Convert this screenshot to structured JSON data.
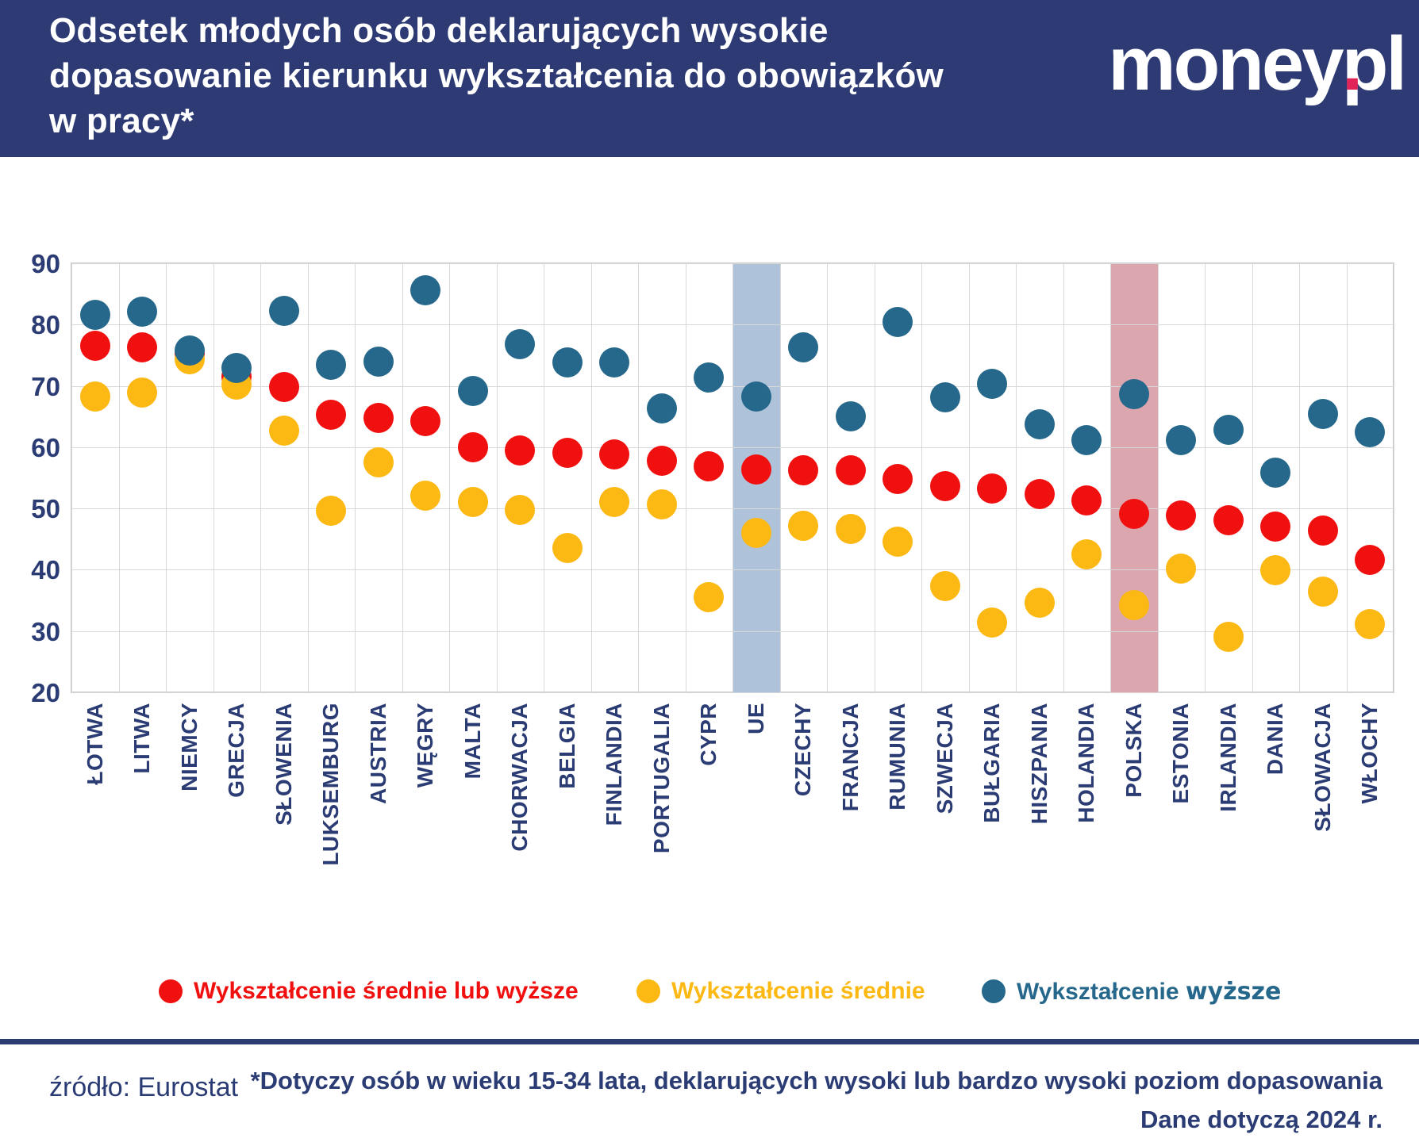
{
  "header": {
    "title_line1": "Odsetek młodych osób deklarujących wysokie",
    "title_line2": "dopasowanie kierunku wykształcenia do obowiązków",
    "title_line3": "w pracy*",
    "logo_part1": "money",
    "logo_dot": ".",
    "logo_part2": "pl"
  },
  "colors": {
    "header_bg": "#2d3a74",
    "text_navy": "#2b3c74",
    "red": "#f01010",
    "yellow": "#fcb813",
    "blue": "#26688b",
    "logo_dot_pink": "#e02457",
    "band_ue": "#aec3d9",
    "band_poland": "#dba6ae",
    "gridline": "#d8d8d8"
  },
  "chart_data": {
    "type": "scatter",
    "title": "Odsetek młodych osób deklarujących wysokie dopasowanie kierunku wykształcenia do obowiązków w pracy*",
    "xlabel": "",
    "ylabel": "",
    "ylim": [
      20,
      90
    ],
    "ytick_step": 10,
    "grid": true,
    "legend_position": "bottom",
    "categories": [
      "ŁOTWA",
      "LITWA",
      "NIEMCY",
      "GRECJA",
      "SŁOWENIA",
      "LUKSEMBURG",
      "AUSTRIA",
      "WĘGRY",
      "MALTA",
      "CHORWACJA",
      "BELGIA",
      "FINLANDIA",
      "PORTUGALIA",
      "CYPR",
      "UE",
      "CZECHY",
      "FRANCJA",
      "RUMUNIA",
      "SZWECJA",
      "BUŁGARIA",
      "HISZPANIA",
      "HOLANDIA",
      "POLSKA",
      "ESTONIA",
      "IRLANDIA",
      "DANIA",
      "SŁOWACJA",
      "WŁOCHY"
    ],
    "series": [
      {
        "name": "Wykształcenie średnie lub wyższe",
        "color": "#f01010",
        "values": [
          76.5,
          76.3,
          75.2,
          71.5,
          69.8,
          65.3,
          64.8,
          64.2,
          60.0,
          59.4,
          59.1,
          58.8,
          57.8,
          56.9,
          56.4,
          56.2,
          56.2,
          54.8,
          53.6,
          53.2,
          52.4,
          51.3,
          49.1,
          48.9,
          48.1,
          47.1,
          46.4,
          41.6
        ]
      },
      {
        "name": "Wykształcenie średnie",
        "color": "#fcb813",
        "values": [
          68.3,
          68.9,
          74.3,
          70.2,
          62.7,
          49.6,
          57.5,
          52.1,
          51.0,
          49.8,
          43.5,
          51.1,
          50.7,
          35.5,
          46.0,
          47.2,
          46.6,
          44.6,
          37.4,
          31.4,
          34.6,
          42.5,
          34.2,
          40.2,
          29.1,
          39.9,
          36.4,
          31.1
        ]
      },
      {
        "name": "Wykształcenie wyższe",
        "color": "#26688b",
        "values": [
          81.6,
          82.1,
          75.8,
          72.9,
          82.3,
          73.4,
          73.9,
          85.6,
          69.2,
          76.8,
          73.8,
          73.8,
          66.3,
          71.4,
          68.2,
          76.3,
          65.0,
          80.4,
          68.1,
          70.3,
          63.7,
          61.2,
          68.6,
          61.1,
          62.8,
          55.8,
          65.4,
          62.4
        ]
      }
    ],
    "highlight_columns": [
      {
        "category": "UE",
        "color": "#aec3d9"
      },
      {
        "category": "POLSKA",
        "color": "#dba6ae"
      }
    ]
  },
  "legend": {
    "item3_prefix": "Wykształcenie",
    "item3_suffix": "wyższe"
  },
  "footer": {
    "source": "źródło: Eurostat",
    "note_line1": "*Dotyczy osób w wieku 15-34 lata, deklarujących wysoki lub bardzo wysoki poziom dopasowania",
    "note_line2": "Dane dotyczą 2024 r."
  }
}
